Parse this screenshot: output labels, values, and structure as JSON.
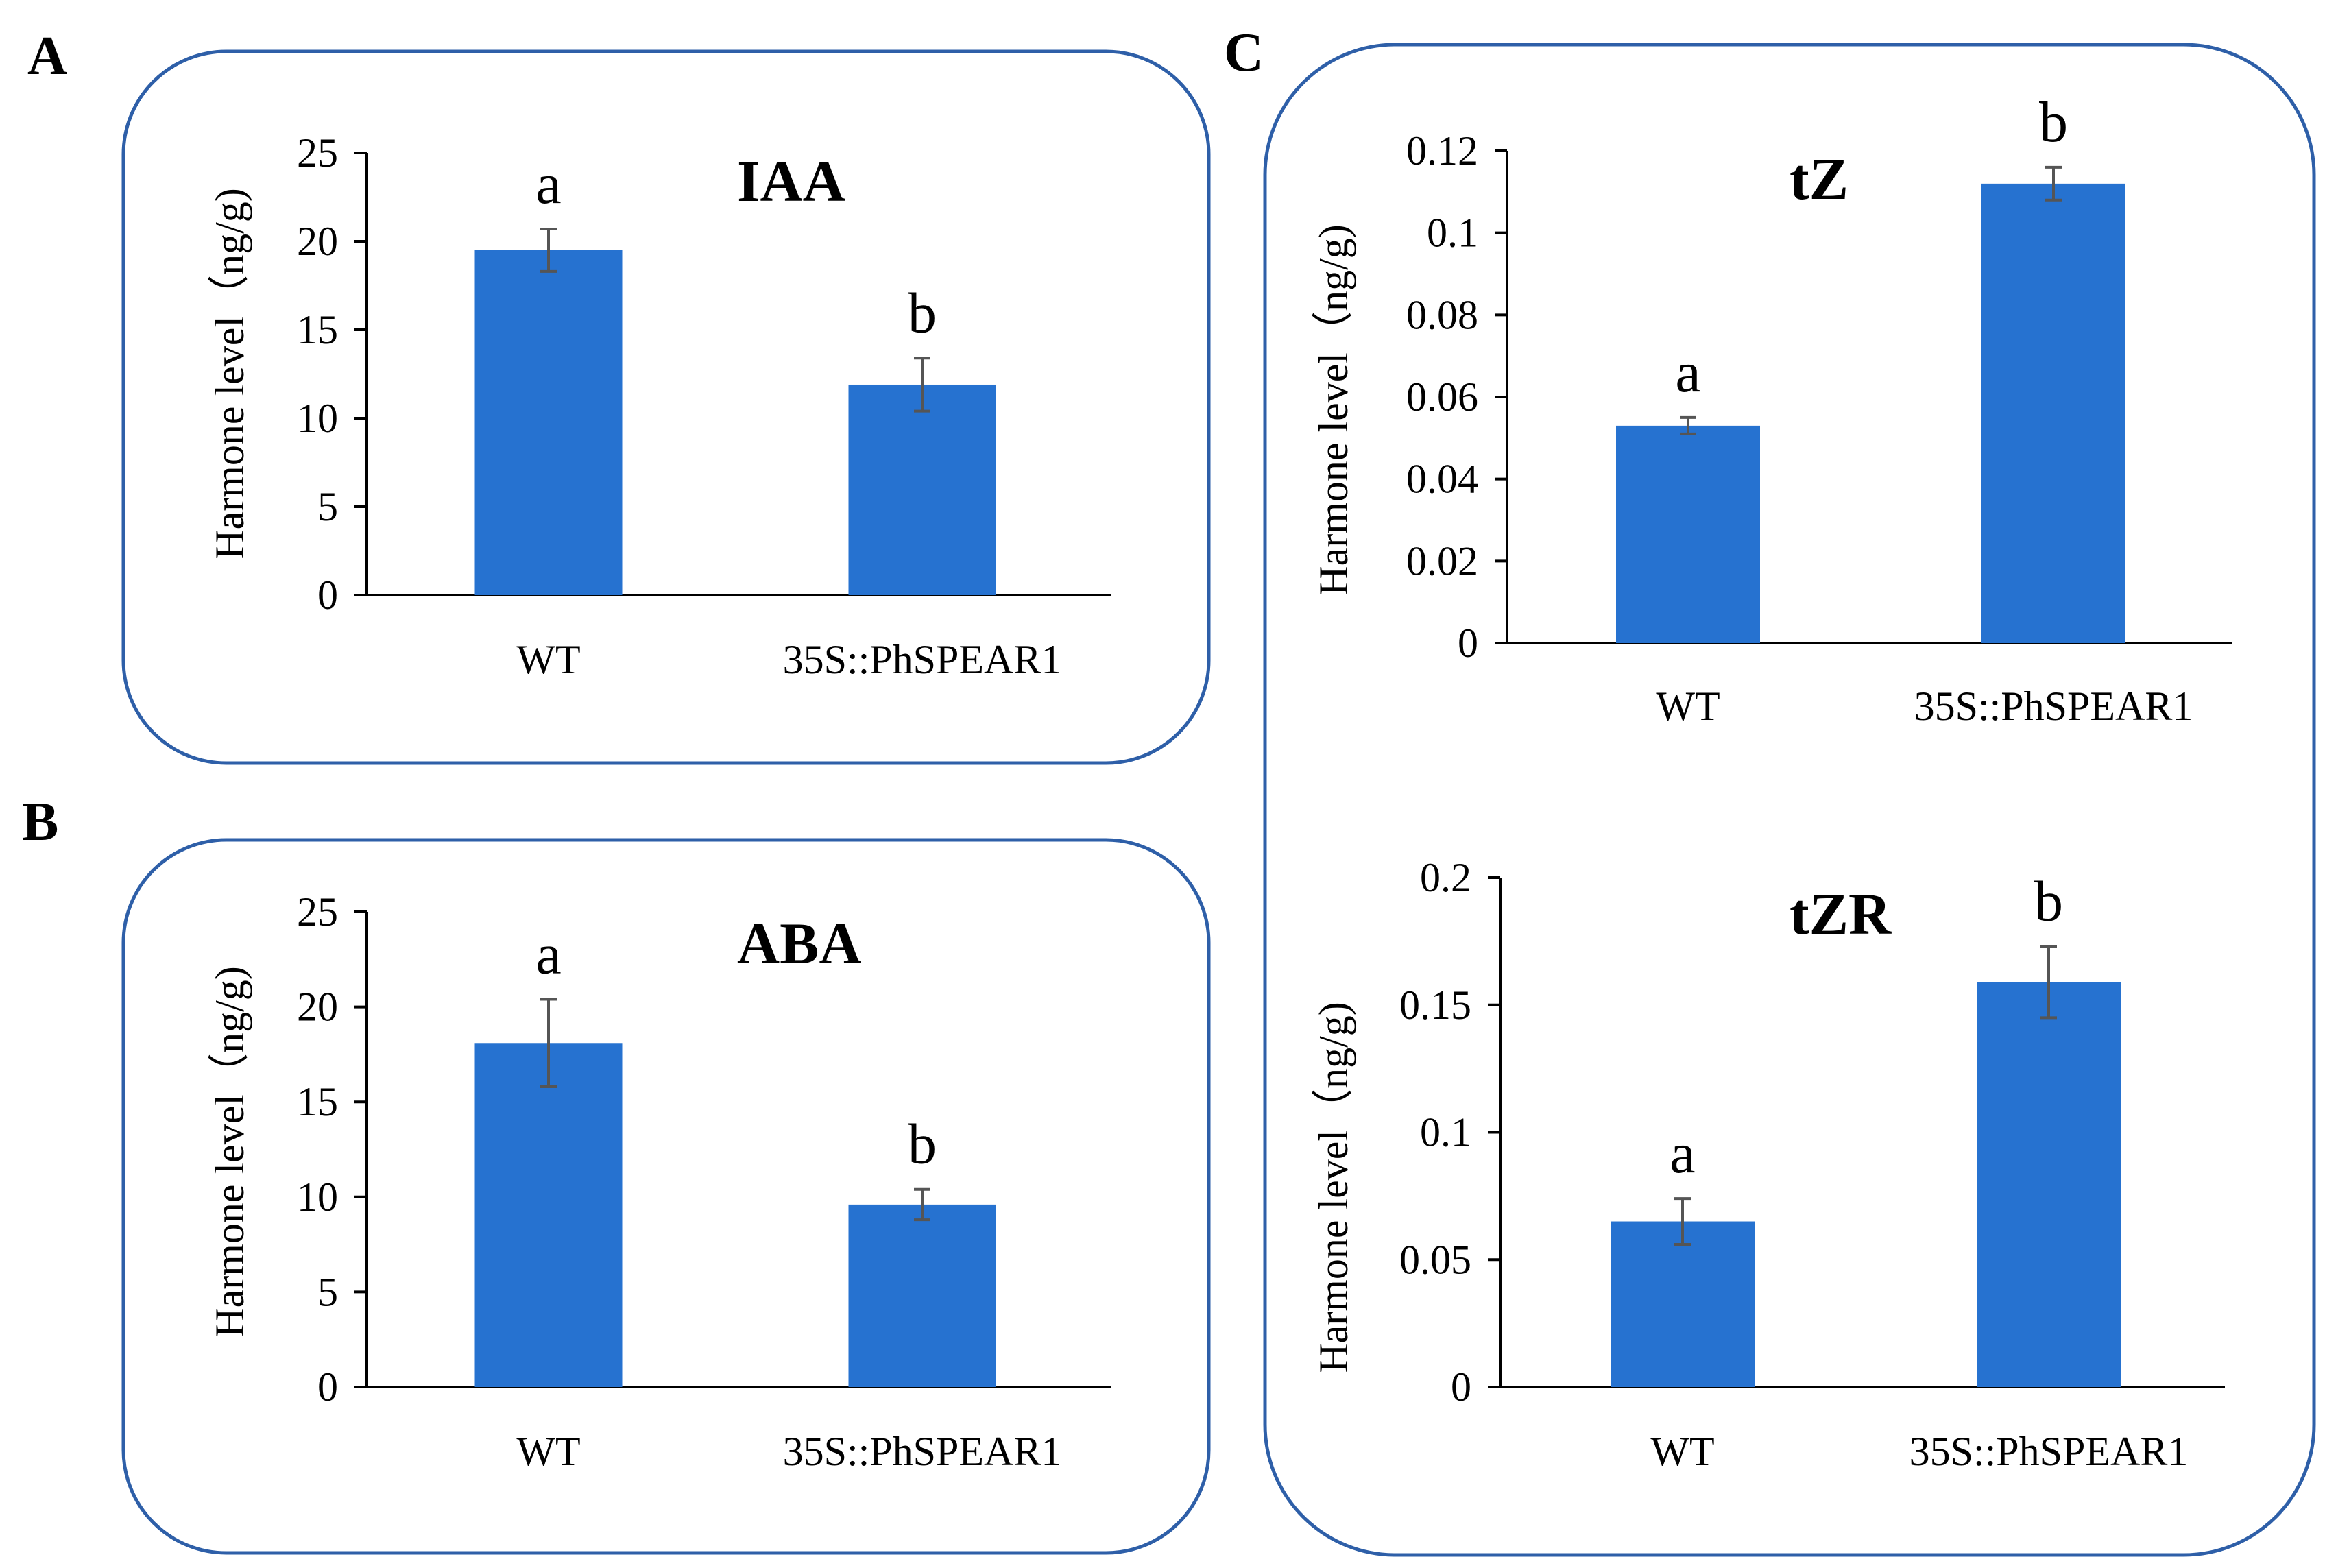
{
  "figure": {
    "panel_letters": [
      "A",
      "B",
      "C"
    ],
    "box_color": "#2e5fa8",
    "bar_color": "#2672d0",
    "error_color": "#555555"
  },
  "chart_data": [
    {
      "type": "bar",
      "panel": "A",
      "title": "IAA",
      "ylabel": "Harmone level（ng/g)",
      "xlabel": "",
      "categories": [
        "WT",
        "35S::PhSPEAR1"
      ],
      "values": [
        19.5,
        11.9
      ],
      "errors": [
        1.2,
        1.5
      ],
      "significance": [
        "a",
        "b"
      ],
      "ylim": [
        0,
        25
      ],
      "yticks": [
        0,
        5,
        10,
        15,
        20,
        25
      ],
      "ytick_labels": [
        "0",
        "5",
        "10",
        "15",
        "20",
        "25"
      ]
    },
    {
      "type": "bar",
      "panel": "B",
      "title": "ABA",
      "ylabel": "Harmone level（ng/g)",
      "xlabel": "",
      "categories": [
        "WT",
        "35S::PhSPEAR1"
      ],
      "values": [
        18.1,
        9.6
      ],
      "errors": [
        2.3,
        0.8
      ],
      "significance": [
        "a",
        "b"
      ],
      "ylim": [
        0,
        25
      ],
      "yticks": [
        0,
        5,
        10,
        15,
        20,
        25
      ],
      "ytick_labels": [
        "0",
        "5",
        "10",
        "15",
        "20",
        "25"
      ]
    },
    {
      "type": "bar",
      "panel": "C",
      "title": "tZ",
      "ylabel": "Harmone level（ng/g)",
      "xlabel": "",
      "categories": [
        "WT",
        "35S::PhSPEAR1"
      ],
      "values": [
        0.053,
        0.112
      ],
      "errors": [
        0.002,
        0.004
      ],
      "significance": [
        "a",
        "b"
      ],
      "ylim": [
        0,
        0.12
      ],
      "yticks": [
        0,
        0.02,
        0.04,
        0.06,
        0.08,
        0.1,
        0.12
      ],
      "ytick_labels": [
        "0",
        "0.02",
        "0.04",
        "0.06",
        "0.08",
        "0.1",
        "0.12"
      ]
    },
    {
      "type": "bar",
      "panel": "C",
      "title": "tZR",
      "ylabel": "Harmone level（ng/g)",
      "xlabel": "",
      "categories": [
        "WT",
        "35S::PhSPEAR1"
      ],
      "values": [
        0.065,
        0.159
      ],
      "errors": [
        0.009,
        0.014
      ],
      "significance": [
        "a",
        "b"
      ],
      "ylim": [
        0,
        0.2
      ],
      "yticks": [
        0,
        0.05,
        0.1,
        0.15,
        0.2
      ],
      "ytick_labels": [
        "0",
        "0.05",
        "0.1",
        "0.15",
        "0.2"
      ]
    }
  ]
}
